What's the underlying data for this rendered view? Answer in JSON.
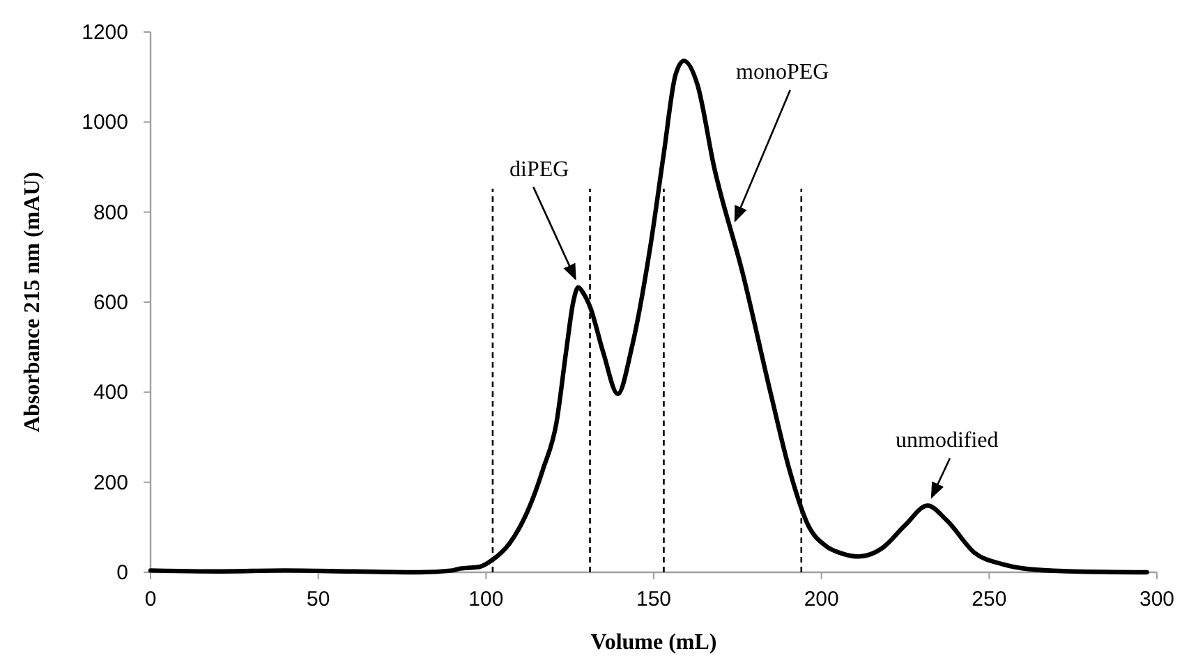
{
  "chart_data": {
    "type": "line",
    "xlabel": "Volume (mL)",
    "ylabel": "Absorbance 215 nm (mAU)",
    "xlim": [
      0,
      300
    ],
    "xticks": [
      0,
      50,
      100,
      150,
      200,
      250,
      300
    ],
    "ylim": [
      0,
      1200
    ],
    "yticks": [
      0,
      200,
      400,
      600,
      800,
      1000,
      1200
    ],
    "grid": false,
    "marker": "none",
    "line_style": "solid",
    "series": [
      {
        "color": "#000000",
        "x": [
          0,
          20,
          40,
          60,
          80,
          90,
          92,
          95,
          98,
          102,
          107,
          113,
          117,
          121,
          124,
          126,
          127.5,
          129,
          131,
          135,
          139.3,
          143.4,
          149,
          153,
          156.5,
          159,
          163,
          168,
          176.6,
          185,
          190.4,
          196,
          201.4,
          206,
          211,
          218,
          225,
          231.6,
          237.4,
          245.7,
          254,
          262,
          275,
          297
        ],
        "values": [
          4,
          2,
          4,
          2,
          0,
          4,
          8,
          10,
          12,
          28,
          64,
          146,
          229,
          332,
          497,
          600,
          633,
          620,
          590,
          487,
          396,
          497,
          724,
          930,
          1105,
          1136,
          1084,
          900,
          662,
          393,
          229,
          105,
          58,
          42,
          35,
          53,
          105,
          148,
          115,
          43,
          18,
          7,
          2,
          0
        ]
      }
    ],
    "ref_lines": [
      {
        "axis": "x",
        "value": 102,
        "color": "#000000",
        "line_style": "dashed"
      },
      {
        "axis": "x",
        "value": 131,
        "color": "#000000",
        "line_style": "dashed"
      },
      {
        "axis": "x",
        "value": 153,
        "color": "#000000",
        "line_style": "dashed"
      },
      {
        "axis": "x",
        "value": 194,
        "color": "#000000",
        "line_style": "dashed"
      }
    ],
    "annotations": [
      {
        "text": "diPEG",
        "x": 127.5,
        "y": 633
      },
      {
        "text": "monoPEG",
        "x": 173,
        "y": 762
      },
      {
        "text": "unmodified",
        "x": 231.6,
        "y": 148
      }
    ]
  }
}
